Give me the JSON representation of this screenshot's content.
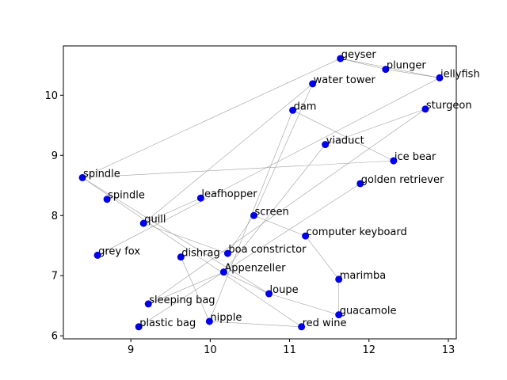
{
  "chart_data": {
    "type": "scatter",
    "title": "",
    "xlabel": "",
    "ylabel": "",
    "xlim": [
      8.15,
      13.1
    ],
    "ylim": [
      5.95,
      10.82
    ],
    "x_ticks": [
      9,
      10,
      11,
      12,
      13
    ],
    "y_ticks": [
      6,
      7,
      8,
      9,
      10
    ],
    "grid": false,
    "colors": {
      "point": "#0000ee",
      "edge": "#a0a0a0",
      "axis": "#000000"
    },
    "points": [
      {
        "label": "geyser",
        "x": 11.64,
        "y": 10.61
      },
      {
        "label": "plunger",
        "x": 12.21,
        "y": 10.43
      },
      {
        "label": "jellyfish",
        "x": 12.89,
        "y": 10.29
      },
      {
        "label": "water tower",
        "x": 11.29,
        "y": 10.19
      },
      {
        "label": "dam",
        "x": 11.04,
        "y": 9.75
      },
      {
        "label": "sturgeon",
        "x": 12.71,
        "y": 9.77
      },
      {
        "label": "viaduct",
        "x": 11.45,
        "y": 9.18
      },
      {
        "label": "ice bear",
        "x": 12.31,
        "y": 8.91
      },
      {
        "label": "spindle",
        "x": 8.39,
        "y": 8.63
      },
      {
        "label": "golden retriever",
        "x": 11.89,
        "y": 8.53
      },
      {
        "label": "spindle",
        "x": 8.7,
        "y": 8.27
      },
      {
        "label": "leafhopper",
        "x": 9.88,
        "y": 8.29
      },
      {
        "label": "screen",
        "x": 10.55,
        "y": 8.0
      },
      {
        "label": "quill",
        "x": 9.16,
        "y": 7.87
      },
      {
        "label": "computer keyboard",
        "x": 11.2,
        "y": 7.66
      },
      {
        "label": "grey fox",
        "x": 8.58,
        "y": 7.34
      },
      {
        "label": "dishrag",
        "x": 9.63,
        "y": 7.31
      },
      {
        "label": "boa constrictor",
        "x": 10.22,
        "y": 7.37
      },
      {
        "label": "Appenzeller",
        "x": 10.17,
        "y": 7.06
      },
      {
        "label": "marimba",
        "x": 11.62,
        "y": 6.94
      },
      {
        "label": "loupe",
        "x": 10.74,
        "y": 6.7
      },
      {
        "label": "sleeping bag",
        "x": 9.22,
        "y": 6.53
      },
      {
        "label": "guacamole",
        "x": 11.62,
        "y": 6.35
      },
      {
        "label": "nipple",
        "x": 9.99,
        "y": 6.24
      },
      {
        "label": "plastic bag",
        "x": 9.1,
        "y": 6.15
      },
      {
        "label": "red wine",
        "x": 11.15,
        "y": 6.15
      }
    ],
    "edges": [
      [
        "geyser",
        "plunger"
      ],
      [
        "plunger",
        "jellyfish"
      ],
      [
        "geyser",
        "jellyfish"
      ],
      [
        "geyser",
        "spindle"
      ],
      [
        "water tower",
        "quill"
      ],
      [
        "water tower",
        "screen"
      ],
      [
        "dam",
        "ice bear"
      ],
      [
        "dam",
        "nipple"
      ],
      [
        "sturgeon",
        "sleeping bag"
      ],
      [
        "sturgeon",
        "viaduct"
      ],
      [
        "jellyfish",
        "grey fox"
      ],
      [
        "viaduct",
        "Appenzeller"
      ],
      [
        "ice bear",
        "spindle"
      ],
      [
        "golden retriever",
        "plastic bag"
      ],
      [
        "spindle",
        "loupe"
      ],
      [
        "spindle",
        "red wine"
      ],
      [
        "leafhopper",
        "quill"
      ],
      [
        "screen",
        "computer keyboard"
      ],
      [
        "screen",
        "boa constrictor"
      ],
      [
        "quill",
        "boa constrictor"
      ],
      [
        "computer keyboard",
        "marimba"
      ],
      [
        "marimba",
        "guacamole"
      ],
      [
        "guacamole",
        "loupe"
      ],
      [
        "dishrag",
        "nipple"
      ],
      [
        "Appenzeller",
        "loupe"
      ],
      [
        "Appenzeller",
        "sleeping bag"
      ],
      [
        "nipple",
        "red wine"
      ]
    ]
  }
}
